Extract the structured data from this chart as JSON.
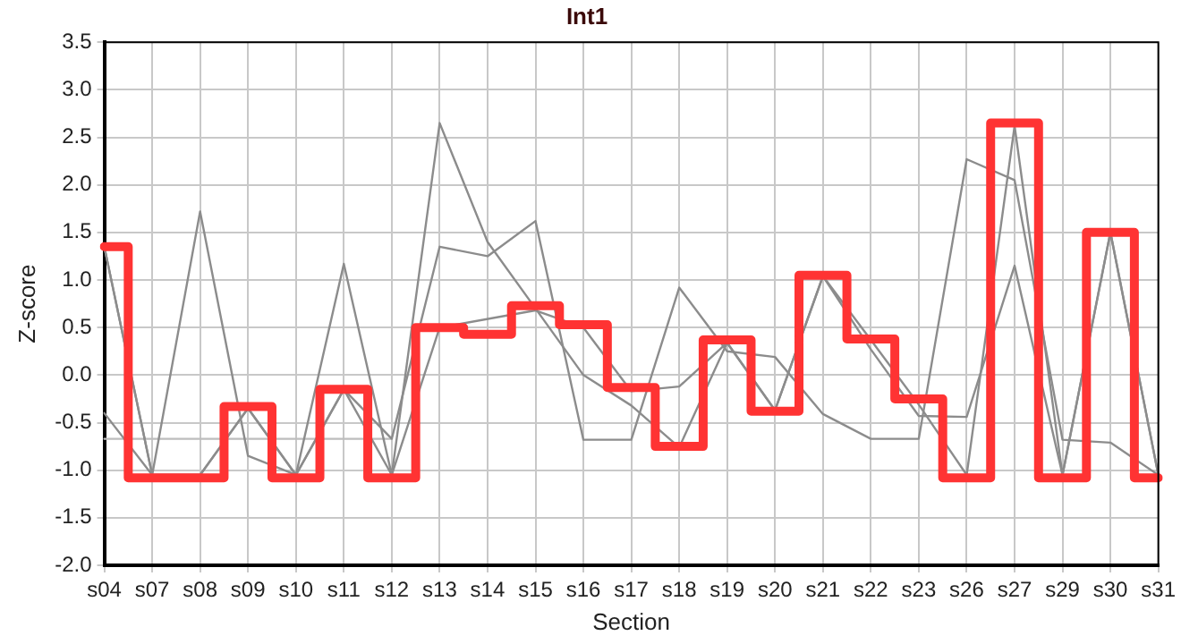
{
  "chart_data": {
    "type": "line",
    "title": "Int1",
    "xlabel": "Section",
    "ylabel": "Z-score",
    "categories": [
      "s04",
      "s07",
      "s08",
      "s09",
      "s10",
      "s11",
      "s12",
      "s13",
      "s14",
      "s15",
      "s16",
      "s17",
      "s18",
      "s19",
      "s20",
      "s21",
      "s22",
      "s23",
      "s26",
      "s27",
      "s29",
      "s30",
      "s31"
    ],
    "series": [
      {
        "color": "#8c8c8c",
        "values": [
          1.35,
          -1.05,
          1.72,
          -0.85,
          -1.05,
          1.17,
          -1.05,
          2.65,
          1.4,
          0.7,
          0.0,
          -0.32,
          -0.76,
          0.34,
          -0.37,
          1.04,
          0.37,
          -0.31,
          -1.05,
          2.62,
          -1.05,
          1.5,
          -1.05
        ]
      },
      {
        "color": "#8c8c8c",
        "values": [
          -0.4,
          -1.05,
          -1.05,
          -0.35,
          -1.05,
          -0.15,
          -0.67,
          1.35,
          1.25,
          1.62,
          -0.68,
          -0.68,
          0.92,
          0.25,
          0.19,
          -0.41,
          -0.67,
          -0.67,
          2.27,
          2.05,
          -0.68,
          -0.71,
          -1.05
        ]
      },
      {
        "color": "#8c8c8c",
        "values": [
          1.35,
          -1.05,
          -1.05,
          -0.35,
          -1.05,
          -0.15,
          -1.05,
          0.5,
          null,
          0.68,
          0.5,
          -0.17,
          -0.12,
          0.34,
          -0.37,
          1.04,
          0.27,
          -0.43,
          -0.44,
          1.15,
          -1.05,
          1.5,
          -1.05
        ]
      },
      {
        "color": "#bdbdbd",
        "values": [
          -0.67,
          -0.67,
          -0.67,
          -0.67,
          -0.67,
          -0.67,
          -0.67,
          null,
          null,
          null,
          null,
          null,
          null,
          null,
          null,
          null,
          null,
          null,
          null,
          null,
          null,
          null,
          null
        ]
      },
      {
        "type": "step",
        "color": "#ff3333",
        "values": [
          1.35,
          -1.08,
          -1.08,
          -0.33,
          -1.08,
          -0.15,
          -1.08,
          0.5,
          0.43,
          0.73,
          0.53,
          -0.13,
          -0.75,
          0.37,
          -0.38,
          1.05,
          0.38,
          -0.25,
          -1.08,
          2.65,
          -1.08,
          1.5,
          -1.08
        ]
      }
    ],
    "ylim": [
      -2,
      3.5
    ],
    "yticks": [
      {
        "value": -2,
        "label": "-2.0"
      },
      -1.5,
      {
        "value": -1,
        "label": "-1.0"
      },
      -0.5,
      {
        "value": 0,
        "label": "0.0"
      },
      0.5,
      {
        "value": 1,
        "label": "1.0"
      },
      1.5,
      {
        "value": 2,
        "label": "2.0"
      },
      2.5,
      {
        "value": 3,
        "label": "3.0"
      },
      3.5
    ],
    "grid": true,
    "legend": false,
    "marker": "none"
  }
}
